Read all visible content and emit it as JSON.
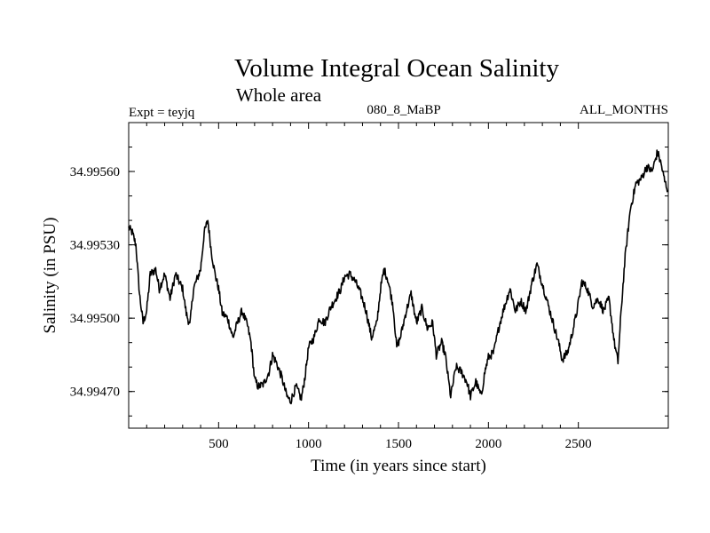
{
  "chart_data": {
    "type": "line",
    "title": "Volume Integral Ocean Salinity",
    "subtitle": "Whole area",
    "header_left": "Expt = teyjq",
    "header_center": "080_8_MaBP",
    "header_right": "ALL_MONTHS",
    "xlabel": "Time (in years since start)",
    "ylabel": "Salinity (in PSU)",
    "xlim": [
      0,
      3000
    ],
    "ylim": [
      34.99455,
      34.9958
    ],
    "xticks": [
      500,
      1000,
      1500,
      2000,
      2500
    ],
    "xtick_labels": [
      "500",
      "1000",
      "1500",
      "2000",
      "2500"
    ],
    "yticks": [
      34.9947,
      34.995,
      34.9953,
      34.9956
    ],
    "ytick_labels": [
      "34.99470",
      "34.99500",
      "34.99530",
      "34.99560"
    ],
    "grid": false,
    "series": [
      {
        "name": "Salinity",
        "x": [
          0,
          20,
          40,
          60,
          80,
          100,
          120,
          150,
          170,
          200,
          230,
          260,
          280,
          300,
          320,
          340,
          360,
          380,
          400,
          420,
          440,
          460,
          480,
          500,
          520,
          550,
          580,
          600,
          630,
          660,
          680,
          700,
          720,
          750,
          780,
          800,
          820,
          850,
          880,
          900,
          930,
          960,
          980,
          1000,
          1030,
          1060,
          1090,
          1120,
          1150,
          1180,
          1200,
          1230,
          1260,
          1290,
          1320,
          1350,
          1380,
          1400,
          1420,
          1440,
          1470,
          1490,
          1510,
          1540,
          1570,
          1600,
          1630,
          1660,
          1690,
          1710,
          1740,
          1760,
          1790,
          1820,
          1850,
          1880,
          1900,
          1930,
          1960,
          1980,
          2000,
          2030,
          2060,
          2090,
          2120,
          2150,
          2180,
          2210,
          2240,
          2270,
          2300,
          2330,
          2360,
          2390,
          2410,
          2440,
          2460,
          2490,
          2520,
          2550,
          2580,
          2610,
          2640,
          2670,
          2700,
          2720,
          2740,
          2760,
          2790,
          2820,
          2850,
          2880,
          2910,
          2940,
          2960,
          2980,
          3000
        ],
        "values": [
          34.99537,
          34.99535,
          34.9953,
          34.9951,
          34.99498,
          34.99503,
          34.99518,
          34.9952,
          34.99512,
          34.99518,
          34.99508,
          34.99518,
          34.99515,
          34.99512,
          34.99502,
          34.99497,
          34.99512,
          34.99516,
          34.9952,
          34.99535,
          34.9954,
          34.99527,
          34.99518,
          34.99512,
          34.99502,
          34.995,
          34.99492,
          34.99497,
          34.99503,
          34.99497,
          34.9949,
          34.99475,
          34.99472,
          34.99473,
          34.99478,
          34.99485,
          34.99482,
          34.99476,
          34.99468,
          34.99466,
          34.99472,
          34.99467,
          34.99476,
          34.99488,
          34.99492,
          34.995,
          34.99498,
          34.99504,
          34.99508,
          34.99512,
          34.99517,
          34.99518,
          34.99515,
          34.9951,
          34.99503,
          34.99492,
          34.99498,
          34.99512,
          34.9952,
          34.99516,
          34.99505,
          34.99488,
          34.99492,
          34.99502,
          34.9951,
          34.99498,
          34.99504,
          34.99496,
          34.99498,
          34.99485,
          34.9949,
          34.99485,
          34.99468,
          34.9948,
          34.99478,
          34.99474,
          34.99468,
          34.99474,
          34.99468,
          34.99478,
          34.99484,
          34.99486,
          34.99497,
          34.99505,
          34.99512,
          34.99503,
          34.99507,
          34.99503,
          34.99514,
          34.99522,
          34.99514,
          34.99506,
          34.99498,
          34.9949,
          34.99483,
          34.99486,
          34.99492,
          34.99502,
          34.99515,
          34.99512,
          34.99505,
          34.99508,
          34.99503,
          34.99508,
          34.9949,
          34.99482,
          34.99505,
          34.99525,
          34.99545,
          34.99555,
          34.99557,
          34.99562,
          34.9956,
          34.99568,
          34.99563,
          34.99556,
          34.99552
        ]
      }
    ]
  }
}
